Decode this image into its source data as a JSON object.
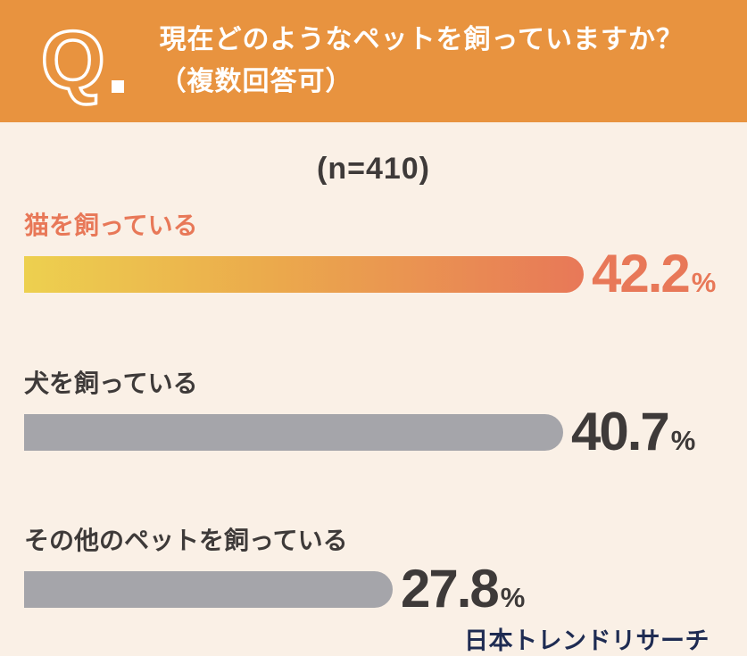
{
  "header": {
    "q_mark": "Q",
    "title_line1": "現在どのようなペットを飼っていますか？",
    "title_line2": "（複数回答可）"
  },
  "survey": {
    "sample_size_label": "(n=410)"
  },
  "chart_data": {
    "type": "bar",
    "orientation": "horizontal",
    "title": "現在どのようなペットを飼っていますか？（複数回答可）",
    "sample_size": 410,
    "categories": [
      "猫を飼っている",
      "犬を飼っている",
      "その他のペットを飼っている"
    ],
    "values": [
      42.2,
      40.7,
      27.8
    ],
    "value_labels": [
      "42.2",
      "40.7",
      "27.8"
    ],
    "unit": "%",
    "highlight_index": 0,
    "xlim": [
      0,
      52
    ],
    "grid": false,
    "legend": false,
    "bar_colors": [
      "linear-gradient #EDD04F to #E87858",
      "#A5A5AA",
      "#A5A5AA"
    ]
  },
  "footer": {
    "source": "日本トレンドリサーチ"
  },
  "colors": {
    "header_bg": "#E8933F",
    "body_bg": "#FAF0E6",
    "highlight": "#E87858",
    "gradient_start": "#EDD04F",
    "gradient_end": "#E87858",
    "gray_bar": "#A5A5AA",
    "dark_text": "#3E3A39",
    "footer_text": "#1E2B52",
    "header_text": "#FFFFFF"
  }
}
